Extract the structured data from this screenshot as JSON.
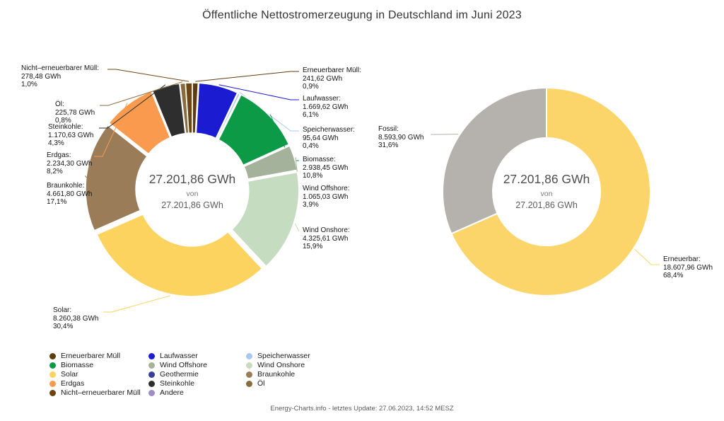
{
  "title": "Öffentliche Nettostromerzeugung in Deutschland im Juni 2023",
  "footer": "Energy-Charts.info - letztes Update: 27.06.2023, 14:52 MESZ",
  "chart_data": [
    {
      "type": "pie",
      "name": "Stromerzeugung nach Energieträger",
      "unit": "GWh",
      "legend_position": "bottom",
      "center": {
        "value": "27.201,86 GWh",
        "preposition": "von",
        "total": "27.201,86 GWh"
      },
      "slices": [
        {
          "label": "Erneuerbarer Müll",
          "value": 241.62,
          "value_text": "241,62 GWh",
          "percent_text": "0,9%",
          "color": "#5e3c10"
        },
        {
          "label": "Laufwasser",
          "value": 1669.62,
          "value_text": "1.669,62 GWh",
          "percent_text": "6,1%",
          "color": "#1b1bd1"
        },
        {
          "label": "Speicherwasser",
          "value": 95.64,
          "value_text": "95,64 GWh",
          "percent_text": "0,4%",
          "color": "#a9c8ee"
        },
        {
          "label": "Biomasse",
          "value": 2938.45,
          "value_text": "2.938,45 GWh",
          "percent_text": "10,8%",
          "color": "#0d9a47"
        },
        {
          "label": "Wind Offshore",
          "value": 1065.03,
          "value_text": "1.065,03 GWh",
          "percent_text": "3,9%",
          "color": "#a5b29b"
        },
        {
          "label": "Wind Onshore",
          "value": 4325.61,
          "value_text": "4.325,61 GWh",
          "percent_text": "15,9%",
          "color": "#c6dcc0"
        },
        {
          "label": "Solar",
          "value": 8260.38,
          "value_text": "8.260,38 GWh",
          "percent_text": "30,4%",
          "color": "#fcd35f"
        },
        {
          "label": "Braunkohle",
          "value": 4661.8,
          "value_text": "4.661,80 GWh",
          "percent_text": "17,1%",
          "color": "#9b7c58"
        },
        {
          "label": "Erdgas",
          "value": 2234.3,
          "value_text": "2.234,30 GWh",
          "percent_text": "8,2%",
          "color": "#fa9a4f"
        },
        {
          "label": "Steinkohle",
          "value": 1170.63,
          "value_text": "1.170,63 GWh",
          "percent_text": "4,3%",
          "color": "#2e2e2e"
        },
        {
          "label": "Öl",
          "value": 225.78,
          "value_text": "225,78 GWh",
          "percent_text": "0,8%",
          "color": "#8a6c3c"
        },
        {
          "label": "Nicht–erneuerbarer Müll",
          "value": 278.48,
          "value_text": "278,48 GWh",
          "percent_text": "1,0%",
          "color": "#6b4512"
        }
      ]
    },
    {
      "type": "pie",
      "name": "Fossil vs Erneuerbar",
      "unit": "GWh",
      "center": {
        "value": "27.201,86 GWh",
        "preposition": "von",
        "total": "27.201,86 GWh"
      },
      "slices": [
        {
          "label": "Erneuerbar",
          "value": 18607.96,
          "value_text": "18.607,96 GWh",
          "percent_text": "68,4%",
          "color": "#fcd56a"
        },
        {
          "label": "Fossil",
          "value": 8593.9,
          "value_text": "8.593,90 GWh",
          "percent_text": "31,6%",
          "color": "#b5b1ac"
        }
      ]
    }
  ],
  "legend": {
    "columns": [
      [
        {
          "label": "Erneuerbarer Müll",
          "color": "#5e3c10"
        },
        {
          "label": "Biomasse",
          "color": "#0d9a47"
        },
        {
          "label": "Solar",
          "color": "#fcd35f"
        },
        {
          "label": "Erdgas",
          "color": "#fa9a4f"
        },
        {
          "label": "Nicht–erneuerbarer Müll",
          "color": "#6b4512"
        }
      ],
      [
        {
          "label": "Laufwasser",
          "color": "#1b1bd1"
        },
        {
          "label": "Wind Offshore",
          "color": "#a5b29b"
        },
        {
          "label": "Geothermie",
          "color": "#3a3f9e"
        },
        {
          "label": "Steinkohle",
          "color": "#2e2e2e"
        },
        {
          "label": "Andere",
          "color": "#9e8cc8"
        }
      ],
      [
        {
          "label": "Speicherwasser",
          "color": "#a9c8ee"
        },
        {
          "label": "Wind Onshore",
          "color": "#c6dcc0"
        },
        {
          "label": "Braunkohle",
          "color": "#9b7c58"
        },
        {
          "label": "Öl",
          "color": "#8a6c3c"
        }
      ]
    ]
  }
}
